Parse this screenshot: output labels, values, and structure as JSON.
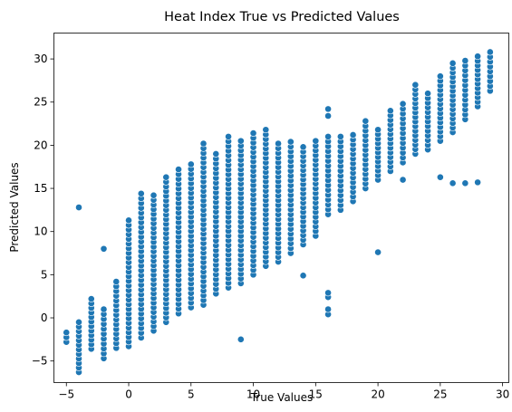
{
  "chart_data": {
    "type": "scatter",
    "title": "Heat Index True vs Predicted Values",
    "xlabel": "True Values",
    "ylabel": "Predicted Values",
    "xlim": [
      -6,
      30.5
    ],
    "ylim": [
      -7.5,
      33
    ],
    "xticks": [
      -5,
      0,
      5,
      10,
      15,
      20,
      25,
      30
    ],
    "yticks": [
      -5,
      0,
      5,
      10,
      15,
      20,
      25,
      30
    ],
    "grid": false,
    "legend": "none",
    "marker_color": "#1f77b4",
    "marker_edge_color": "#ffffff",
    "column_ranges": [
      {
        "x": -5,
        "y_min": -2.8,
        "y_max": -1.7
      },
      {
        "x": -4,
        "y_min": -6.3,
        "y_max": -0.5
      },
      {
        "x": -3,
        "y_min": -3.6,
        "y_max": 2.2
      },
      {
        "x": -2,
        "y_min": -4.7,
        "y_max": 1.0
      },
      {
        "x": -1,
        "y_min": -3.5,
        "y_max": 4.2
      },
      {
        "x": 0,
        "y_min": -3.3,
        "y_max": 11.3
      },
      {
        "x": 1,
        "y_min": -2.3,
        "y_max": 14.4
      },
      {
        "x": 2,
        "y_min": -1.5,
        "y_max": 14.2
      },
      {
        "x": 3,
        "y_min": -0.5,
        "y_max": 16.3
      },
      {
        "x": 4,
        "y_min": 0.5,
        "y_max": 17.2
      },
      {
        "x": 5,
        "y_min": 1.2,
        "y_max": 17.8
      },
      {
        "x": 6,
        "y_min": 1.5,
        "y_max": 20.2
      },
      {
        "x": 7,
        "y_min": 2.8,
        "y_max": 19.0
      },
      {
        "x": 8,
        "y_min": 3.5,
        "y_max": 21.0
      },
      {
        "x": 9,
        "y_min": 4.0,
        "y_max": 20.5
      },
      {
        "x": 10,
        "y_min": 5.0,
        "y_max": 21.4
      },
      {
        "x": 11,
        "y_min": 6.0,
        "y_max": 21.8
      },
      {
        "x": 12,
        "y_min": 6.5,
        "y_max": 20.2
      },
      {
        "x": 13,
        "y_min": 7.5,
        "y_max": 20.4
      },
      {
        "x": 14,
        "y_min": 8.5,
        "y_max": 19.8
      },
      {
        "x": 15,
        "y_min": 9.5,
        "y_max": 20.5
      },
      {
        "x": 16,
        "y_min": 12.0,
        "y_max": 21.0
      },
      {
        "x": 17,
        "y_min": 12.5,
        "y_max": 21.0
      },
      {
        "x": 18,
        "y_min": 13.5,
        "y_max": 21.2
      },
      {
        "x": 19,
        "y_min": 15.0,
        "y_max": 22.8
      },
      {
        "x": 20,
        "y_min": 16.0,
        "y_max": 21.8
      },
      {
        "x": 21,
        "y_min": 17.0,
        "y_max": 24.0
      },
      {
        "x": 22,
        "y_min": 18.0,
        "y_max": 24.8
      },
      {
        "x": 23,
        "y_min": 19.0,
        "y_max": 27.0
      },
      {
        "x": 24,
        "y_min": 19.5,
        "y_max": 26.0
      },
      {
        "x": 25,
        "y_min": 20.5,
        "y_max": 28.0
      },
      {
        "x": 26,
        "y_min": 21.5,
        "y_max": 29.5
      },
      {
        "x": 27,
        "y_min": 23.0,
        "y_max": 29.8
      },
      {
        "x": 28,
        "y_min": 24.5,
        "y_max": 30.3
      },
      {
        "x": 29,
        "y_min": 26.3,
        "y_max": 30.8
      }
    ],
    "outliers": [
      {
        "x": -4,
        "y": 12.8
      },
      {
        "x": -2,
        "y": 8.0
      },
      {
        "x": 9,
        "y": -2.5
      },
      {
        "x": 14,
        "y": 4.9
      },
      {
        "x": 16,
        "y": 0.4
      },
      {
        "x": 16,
        "y": 1.0
      },
      {
        "x": 16,
        "y": 2.4
      },
      {
        "x": 16,
        "y": 2.9
      },
      {
        "x": 16,
        "y": 23.4
      },
      {
        "x": 16,
        "y": 24.2
      },
      {
        "x": 20,
        "y": 7.6
      },
      {
        "x": 22,
        "y": 16.0
      },
      {
        "x": 25,
        "y": 16.3
      },
      {
        "x": 26,
        "y": 15.6
      },
      {
        "x": 27,
        "y": 15.6
      },
      {
        "x": 28,
        "y": 15.7
      }
    ]
  }
}
